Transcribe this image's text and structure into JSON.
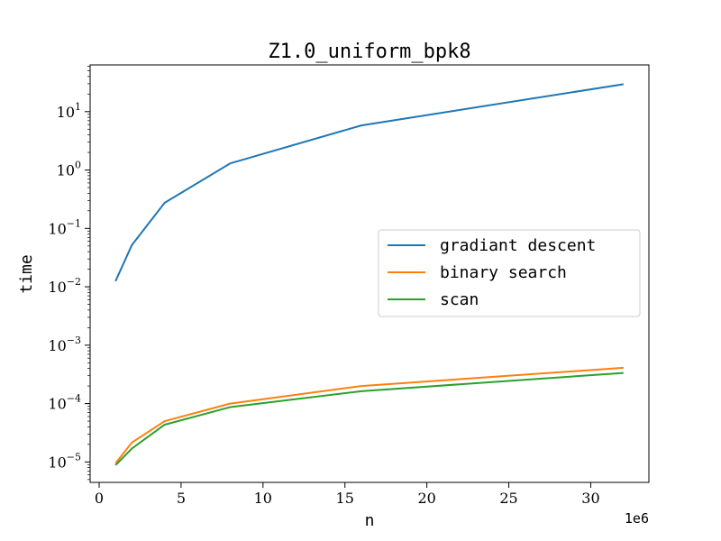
{
  "chart_data": {
    "type": "line",
    "title": "Z1.0_uniform_bpk8",
    "xlabel": "n",
    "ylabel": "time",
    "x_offset_label": "1e6",
    "xscale": "linear",
    "yscale": "log",
    "xlim": [
      -0.55,
      33.55
    ],
    "ylim_log10": [
      -5.35,
      1.8
    ],
    "grid": false,
    "legend_position": "center-right",
    "x_ticks": [
      {
        "value": 0,
        "label": "0"
      },
      {
        "value": 5,
        "label": "5"
      },
      {
        "value": 10,
        "label": "10"
      },
      {
        "value": 15,
        "label": "15"
      },
      {
        "value": 20,
        "label": "20"
      },
      {
        "value": 25,
        "label": "25"
      },
      {
        "value": 30,
        "label": "30"
      }
    ],
    "y_ticks": [
      {
        "exp": -5,
        "base": "10",
        "sup": "−5"
      },
      {
        "exp": -4,
        "base": "10",
        "sup": "−4"
      },
      {
        "exp": -3,
        "base": "10",
        "sup": "−3"
      },
      {
        "exp": -2,
        "base": "10",
        "sup": "−2"
      },
      {
        "exp": -1,
        "base": "10",
        "sup": "−1"
      },
      {
        "exp": 0,
        "base": "10",
        "sup": "0"
      },
      {
        "exp": 1,
        "base": "10",
        "sup": "1"
      }
    ],
    "x": [
      1,
      2,
      4,
      8,
      16,
      32
    ],
    "series": [
      {
        "name": "gradiant descent",
        "color": "#1f77b4",
        "values": [
          0.0125,
          0.052,
          0.275,
          1.3,
          5.8,
          29.5
        ]
      },
      {
        "name": "binary search",
        "color": "#ff7f0e",
        "values": [
          9.5e-06,
          2.15e-05,
          5e-05,
          0.0001,
          0.0002,
          0.00041
        ]
      },
      {
        "name": "scan",
        "color": "#2ca02c",
        "values": [
          8.8e-06,
          1.7e-05,
          4.35e-05,
          8.7e-05,
          0.000163,
          0.000335
        ]
      }
    ]
  }
}
